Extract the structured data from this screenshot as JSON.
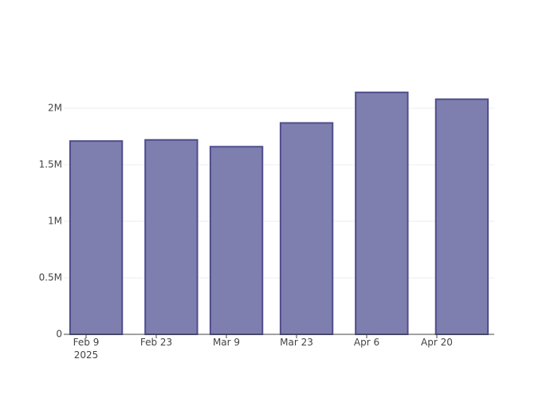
{
  "chart_data": {
    "type": "bar",
    "x": [
      "2025-02-11",
      "2025-02-26",
      "2025-03-11",
      "2025-03-25",
      "2025-04-09",
      "2025-04-25"
    ],
    "values": [
      1710000,
      1720000,
      1660000,
      1870000,
      2140000,
      2080000
    ],
    "color": "#7f7faf",
    "line_color": "#4f4d8c",
    "xlim": [
      "2025-02-04T13:00Z",
      "2025-05-01T11:00Z"
    ],
    "xticks": [
      {
        "value": "2025-02-09",
        "label": "Feb 9\n2025"
      },
      {
        "value": "2025-02-23",
        "label": "Feb 23"
      },
      {
        "value": "2025-03-09",
        "label": "Mar 9"
      },
      {
        "value": "2025-03-23",
        "label": "Mar 23"
      },
      {
        "value": "2025-04-06",
        "label": "Apr 6"
      },
      {
        "value": "2025-04-20",
        "label": "Apr 20"
      }
    ],
    "ylim": [
      0,
      2253500
    ],
    "yticks": [
      0,
      {
        "value": 500000,
        "label": "0.5M"
      },
      {
        "value": 1000000,
        "label": "1M"
      },
      {
        "value": 1500000,
        "label": "1.5M"
      },
      {
        "value": 2000000,
        "label": "2M"
      }
    ],
    "grid": true
  }
}
